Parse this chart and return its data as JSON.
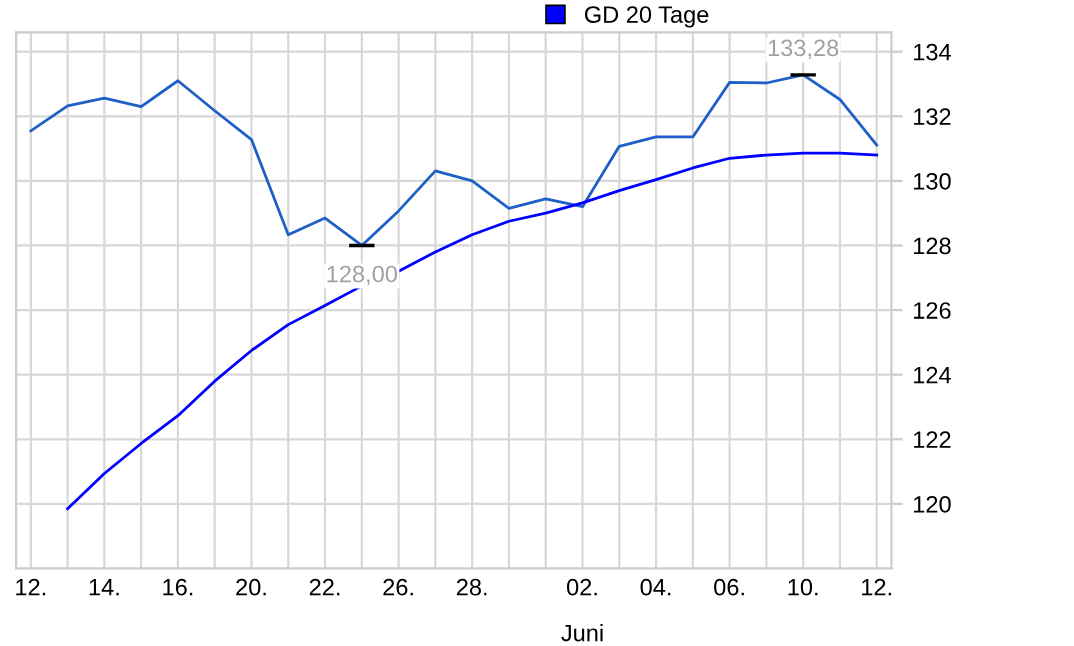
{
  "chart_data": {
    "type": "line",
    "categories": [
      "12.",
      null,
      "14.",
      null,
      "16.",
      null,
      "20.",
      null,
      "22.",
      null,
      "26.",
      null,
      "28.",
      null,
      null,
      "02.",
      null,
      "04.",
      null,
      "06.",
      null,
      "10.",
      null,
      "12."
    ],
    "series": [
      {
        "color": "#1f5fc8",
        "values": [
          131.55,
          132.32,
          132.56,
          132.3,
          133.1,
          132.17,
          131.28,
          128.33,
          128.85,
          128.0,
          129.07,
          130.31,
          130.0,
          129.15,
          129.44,
          129.2,
          131.07,
          131.36,
          131.36,
          133.05,
          133.03,
          133.28,
          132.52,
          131.11
        ]
      },
      {
        "name": "GD 20 Tage",
        "color": "#0000ff",
        "values": [
          null,
          119.85,
          120.94,
          121.87,
          122.73,
          123.8,
          124.75,
          125.55,
          126.14,
          126.75,
          127.2,
          127.8,
          128.33,
          128.75,
          129.0,
          129.32,
          129.7,
          130.04,
          130.4,
          130.7,
          130.8,
          130.86,
          130.86,
          130.8
        ]
      }
    ],
    "ylim": [
      118,
      134.6
    ],
    "yticks": [
      120,
      122,
      124,
      126,
      128,
      130,
      132,
      134
    ],
    "annotations": [
      "128,00",
      "133,28",
      "Juni"
    ],
    "grid": true,
    "legend": "top right",
    "marker": "none",
    "line_style": "solid"
  }
}
